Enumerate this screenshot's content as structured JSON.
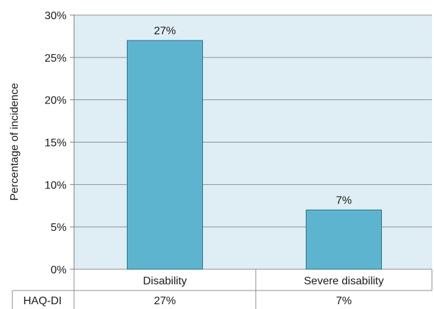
{
  "chart_data": {
    "type": "bar",
    "categories": [
      "Disability",
      "Severe disability"
    ],
    "values": [
      27,
      7
    ],
    "data_labels": [
      "27%",
      "7%"
    ],
    "ylabel": "Percentage of incidence",
    "ylim": [
      0,
      30
    ],
    "yticks": [
      0,
      5,
      10,
      15,
      20,
      25,
      30
    ],
    "ytick_labels": [
      "0%",
      "5%",
      "10%",
      "15%",
      "20%",
      "25%",
      "30%"
    ],
    "grid": true,
    "plot_background": "#deeef4",
    "bar_color": "#5db4cf",
    "bar_edge_color": "#2e6f86",
    "table": {
      "row_label": "HAQ-DI",
      "cells": [
        "27%",
        "7%"
      ]
    }
  }
}
